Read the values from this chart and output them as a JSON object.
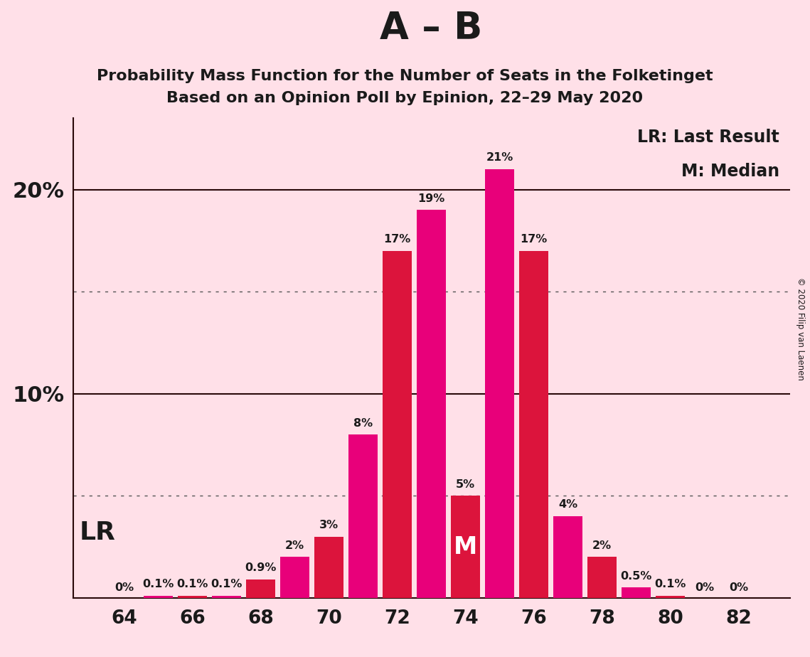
{
  "title_main": "A – B",
  "title_sub1": "Probability Mass Function for the Number of Seats in the Folketinget",
  "title_sub2": "Based on an Opinion Poll by Epinion, 22–29 May 2020",
  "copyright_text": "© 2020 Filip van Laenen",
  "seats": [
    64,
    65,
    66,
    67,
    68,
    69,
    70,
    71,
    72,
    73,
    74,
    75,
    76,
    77,
    78,
    79,
    80,
    81,
    82
  ],
  "values": [
    0.0,
    0.1,
    0.1,
    0.1,
    0.9,
    2.0,
    3.0,
    8.0,
    17.0,
    19.0,
    5.0,
    21.0,
    17.0,
    4.0,
    2.0,
    0.5,
    0.1,
    0.0,
    0.0
  ],
  "labels": [
    "0%",
    "0.1%",
    "0.1%",
    "0.1%",
    "0.9%",
    "2%",
    "3%",
    "8%",
    "17%",
    "19%",
    "5%",
    "21%",
    "17%",
    "4%",
    "2%",
    "0.5%",
    "0.1%",
    "0%",
    "0%"
  ],
  "crimson": "#DC143C",
  "magenta": "#E8007A",
  "background_color": "#FFE0E8",
  "major_yticks": [
    10,
    20
  ],
  "dotted_yticks": [
    5,
    15
  ],
  "median_seat": 74,
  "legend_lr": "LR: Last Result",
  "legend_m": "M: Median",
  "xlim": [
    62.5,
    83.5
  ],
  "ylim": [
    0,
    23.5
  ],
  "xtick_seats": [
    64,
    66,
    68,
    70,
    72,
    74,
    76,
    78,
    80,
    82
  ]
}
